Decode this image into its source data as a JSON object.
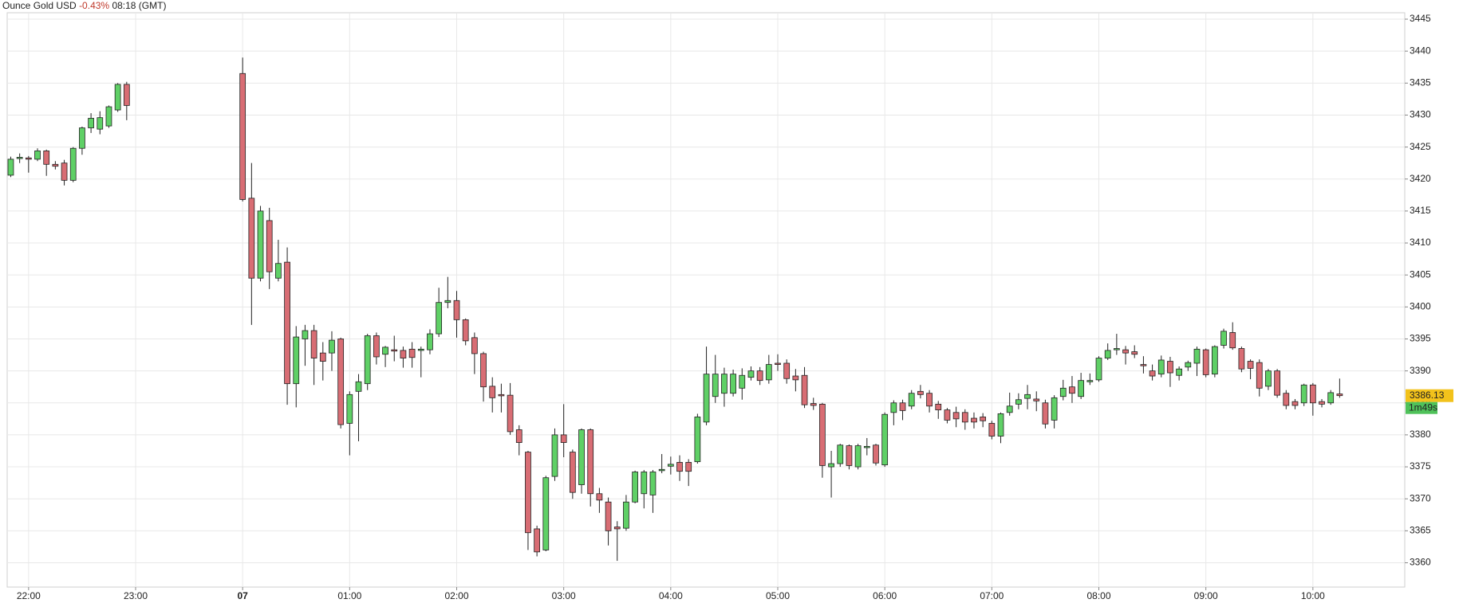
{
  "chart_data": {
    "type": "candlestick",
    "title": "Ounce Gold USD",
    "change": "-0.43%",
    "time": "08:18 (GMT)",
    "up_color": "#5fd066",
    "down_color": "#d86d74",
    "change_color": "#c0392b",
    "last_price": 3386.13,
    "last_price_color": "#f2c21b",
    "countdown": "1m49s",
    "countdown_color": "#4fc25a",
    "ylim": [
      3356.2,
      3446
    ],
    "yticks": [
      3360,
      3365,
      3370,
      3375,
      3380,
      3385,
      3390,
      3395,
      3400,
      3405,
      3410,
      3415,
      3420,
      3425,
      3430,
      3435,
      3440,
      3445
    ],
    "grid": true,
    "bold_category": 26,
    "categories": [
      null,
      null,
      "22:00",
      null,
      null,
      null,
      null,
      null,
      null,
      null,
      null,
      null,
      null,
      null,
      "23:00",
      null,
      null,
      null,
      null,
      null,
      null,
      null,
      null,
      null,
      null,
      null,
      "07",
      null,
      null,
      null,
      null,
      null,
      null,
      null,
      null,
      null,
      null,
      null,
      "01:00",
      null,
      null,
      null,
      null,
      null,
      null,
      null,
      null,
      null,
      null,
      null,
      "02:00",
      null,
      null,
      null,
      null,
      null,
      null,
      null,
      null,
      null,
      null,
      null,
      "03:00",
      null,
      null,
      null,
      null,
      null,
      null,
      null,
      null,
      null,
      null,
      null,
      "04:00",
      null,
      null,
      null,
      null,
      null,
      null,
      null,
      null,
      null,
      null,
      null,
      "05:00",
      null,
      null,
      null,
      null,
      null,
      null,
      null,
      null,
      null,
      null,
      null,
      "06:00",
      null,
      null,
      null,
      null,
      null,
      null,
      null,
      null,
      null,
      null,
      null,
      "07:00",
      null,
      null,
      null,
      null,
      null,
      null,
      null,
      null,
      null,
      null,
      null,
      "08:00",
      null,
      null,
      null,
      null,
      null,
      null,
      null,
      null,
      null,
      null,
      null,
      "09:00",
      null,
      null,
      null,
      null,
      null,
      null,
      null,
      null,
      null,
      null,
      null,
      "10:00",
      null,
      null,
      null
    ],
    "open": [
      3420.6,
      3423.2,
      3423.3,
      3423.1,
      3424.4,
      3422.3,
      3422.5,
      3419.8,
      3424.8,
      3428,
      3427.8,
      3428.3,
      3430.8,
      3434.8,
      null,
      null,
      null,
      null,
      null,
      null,
      null,
      null,
      null,
      null,
      null,
      null,
      3436.5,
      3417,
      3404.5,
      3413.5,
      3404.5,
      3407,
      3388,
      3395,
      3396.3,
      3392.8,
      3392.8,
      3395,
      3381.8,
      3386.8,
      3388,
      3395.5,
      3392.6,
      3393.3,
      3393.2,
      3393.4,
      3393.2,
      3393.3,
      3395.8,
      3400.7,
      3401,
      3398,
      3395.2,
      3392.7,
      3387.6,
      3386.3,
      3386.2,
      3380.8,
      3377.3,
      3365.3,
      3362,
      3373.5,
      3380,
      3377.3,
      3372.2,
      3380.8,
      3370.8,
      3369.5,
      3365.6,
      3365.4,
      3369.5,
      3370.8,
      3370.6,
      3374.4,
      3375.1,
      3375.7,
      3375.7,
      3375.8,
      3382,
      3386,
      3386.5,
      3386.5,
      3387.3,
      3389,
      3390,
      3388.6,
      3391.2,
      3391.2,
      3389.2,
      3389.3,
      3384.9,
      3384.8,
      3375,
      3375.5,
      3378.3,
      3375,
      3378,
      3378.4,
      3375.3,
      3383.5,
      3385,
      3384.5,
      3386.8,
      3386.5,
      3384.8,
      3383.9,
      3383.5,
      3383.5,
      3382.6,
      3382.8,
      3381.8,
      3379.8,
      3383.5,
      3384.8,
      3385.7,
      3385.6,
      3385,
      3382.3,
      3386,
      3387.5,
      3386,
      3388.3,
      3388.6,
      3392,
      3393.3,
      3393.3,
      3393,
      3391,
      3390,
      3389.5,
      3391.5,
      3389.3,
      3390.6,
      3391.2,
      3393.3,
      3389.5,
      3394,
      3396,
      3393.5,
      3391.5,
      3391.3,
      3387.6,
      3390,
      3386.5,
      3385.2,
      3385,
      3387.8,
      3385.2,
      3385,
      3386.4
    ],
    "high": [
      3423.5,
      3424,
      3423.6,
      3424.8,
      3424.6,
      3422.8,
      3423,
      3425,
      3428.2,
      3430.3,
      3430.6,
      3431.5,
      3435,
      3435.2,
      null,
      null,
      null,
      null,
      null,
      null,
      null,
      null,
      null,
      null,
      null,
      null,
      3439,
      3422.5,
      3415.8,
      3415.5,
      3410.5,
      3409.3,
      3397,
      3397.2,
      3397.2,
      3394.5,
      3396.2,
      3395.2,
      3386.8,
      3389.5,
      3395.8,
      3396,
      3393.9,
      3395.5,
      3393.8,
      3394.5,
      3393.8,
      3396.5,
      3403,
      3404.7,
      3402.5,
      3398.2,
      3396,
      3393,
      3389,
      3388,
      3388.1,
      3381.5,
      3377.5,
      3365.8,
      3373.6,
      3381,
      3384.8,
      3377.7,
      3381,
      3381,
      3371.7,
      3370.2,
      3366.5,
      3370.6,
      3374.4,
      3374.5,
      3374.5,
      3377,
      3376.6,
      3376.8,
      3376.2,
      3383.3,
      3393.8,
      3392.5,
      3390.5,
      3390.2,
      3390.4,
      3390.7,
      3390.6,
      3392.5,
      3392.6,
      3391.8,
      3390.3,
      3390.6,
      3385.8,
      3385,
      3377.5,
      3378.6,
      3378.5,
      3378.6,
      3379.5,
      3378.6,
      3383.5,
      3385.4,
      3385.5,
      3387,
      3387.8,
      3387,
      3385.3,
      3384.2,
      3384.4,
      3384,
      3383.5,
      3383.4,
      3382.2,
      3383.5,
      3386.6,
      3386.5,
      3387.8,
      3386.8,
      3385.5,
      3386.2,
      3388.6,
      3389.2,
      3389.7,
      3389.6,
      3392.3,
      3394.3,
      3395.8,
      3393.9,
      3394,
      3392.3,
      3391,
      3392.4,
      3392.2,
      3390.7,
      3391.6,
      3393.8,
      3393.5,
      3394,
      3396.6,
      3397.6,
      3393.8,
      3391.8,
      3391.8,
      3390.3,
      3390.3,
      3387,
      3385.6,
      3388,
      3388.1,
      3385.6,
      3387,
      3388.8
    ],
    "low": [
      3420.3,
      3422.5,
      3421,
      3422.8,
      3420.5,
      3421.5,
      3419,
      3419.5,
      3423.8,
      3427.2,
      3427,
      3428,
      3430.5,
      3429.2,
      null,
      null,
      null,
      null,
      null,
      null,
      null,
      null,
      null,
      null,
      null,
      null,
      3416.5,
      3397.2,
      3404,
      3402.8,
      3404,
      3384.7,
      3384.3,
      3390.8,
      3387.8,
      3388.5,
      3390,
      3381,
      3376.8,
      3379,
      3387,
      3391,
      3390.6,
      3391.5,
      3390.5,
      3390.5,
      3389,
      3392.6,
      3395.3,
      3399.8,
      3395.2,
      3394,
      3389.5,
      3385.2,
      3383.5,
      3383.5,
      3380,
      3376.8,
      3362,
      3361,
      3361.8,
      3372.8,
      3376.5,
      3370,
      3370.8,
      3368.8,
      3367.8,
      3362.7,
      3360.3,
      3365,
      3369.3,
      3368.5,
      3367.8,
      3374,
      3373.8,
      3372.8,
      3372,
      3375.5,
      3381.5,
      3385,
      3384.4,
      3386,
      3385.5,
      3388.5,
      3387.8,
      3388,
      3390,
      3388,
      3386.8,
      3384.2,
      3383.9,
      3373.3,
      3370.2,
      3375,
      3374.6,
      3374.6,
      3376.8,
      3375.2,
      3375,
      3381.5,
      3382.3,
      3384,
      3385.7,
      3383.5,
      3382.5,
      3381.8,
      3381.2,
      3380.8,
      3381,
      3381.2,
      3379.3,
      3378.7,
      3383,
      3384,
      3384,
      3383.7,
      3381,
      3381,
      3385.4,
      3385,
      3385.6,
      3387.8,
      3388.3,
      3391.7,
      3392.5,
      3391,
      3392,
      3389.6,
      3388.5,
      3389,
      3387.5,
      3388.5,
      3390,
      3389.2,
      3389,
      3389,
      3393.5,
      3393.3,
      3389.8,
      3388.7,
      3386,
      3387,
      3385.8,
      3384,
      3384,
      3384.5,
      3383,
      3384.3,
      3384.7,
      3385.8
    ],
    "close": [
      3423.1,
      3423.4,
      3423.1,
      3424.4,
      3422.3,
      3422,
      3419.8,
      3424.8,
      3428,
      3429.5,
      3429.6,
      3431.3,
      3434.8,
      3431.5,
      null,
      null,
      null,
      null,
      null,
      null,
      null,
      null,
      null,
      null,
      null,
      null,
      3416.8,
      3404.5,
      3415,
      3405.5,
      3406.8,
      3388,
      3395.3,
      3396.3,
      3392,
      3391.5,
      3394.8,
      3381.6,
      3386.3,
      3388.3,
      3395.5,
      3392.2,
      3393.7,
      3393.1,
      3392,
      3392.1,
      3393.4,
      3395.8,
      3400.7,
      3401,
      3398,
      3394.7,
      3392.7,
      3387.5,
      3385.8,
      3386.1,
      3380.5,
      3378.8,
      3364.7,
      3361.7,
      3373.3,
      3380,
      3378.8,
      3371,
      3380.8,
      3370.8,
      3369.8,
      3365,
      3365.3,
      3369.5,
      3374.2,
      3374.2,
      3374.2,
      3374.6,
      3375.4,
      3374.3,
      3374.3,
      3382.8,
      3389.5,
      3389.5,
      3389.5,
      3389.5,
      3389.3,
      3390,
      3388.5,
      3391,
      3391,
      3388.8,
      3388.6,
      3384.7,
      3384.6,
      3375.2,
      3375.5,
      3378.4,
      3375.2,
      3378.3,
      3378.2,
      3375.6,
      3383.2,
      3385,
      3383.8,
      3386.5,
      3386.3,
      3384.5,
      3383.9,
      3382.3,
      3382.5,
      3382,
      3382,
      3382.2,
      3379.8,
      3383.3,
      3384.5,
      3385.5,
      3386.3,
      3385.3,
      3381.7,
      3385.8,
      3387.3,
      3386.5,
      3388.5,
      3388.5,
      3392,
      3393.2,
      3393.5,
      3392.8,
      3392.6,
      3390.8,
      3389.2,
      3391.7,
      3389.7,
      3390.3,
      3391.3,
      3393.4,
      3389.4,
      3393.8,
      3396.2,
      3393.6,
      3390.3,
      3390.4,
      3387.3,
      3390,
      3386.2,
      3384.6,
      3384.6,
      3387.8,
      3385,
      3384.8,
      3386.6,
      3386.13
    ]
  }
}
